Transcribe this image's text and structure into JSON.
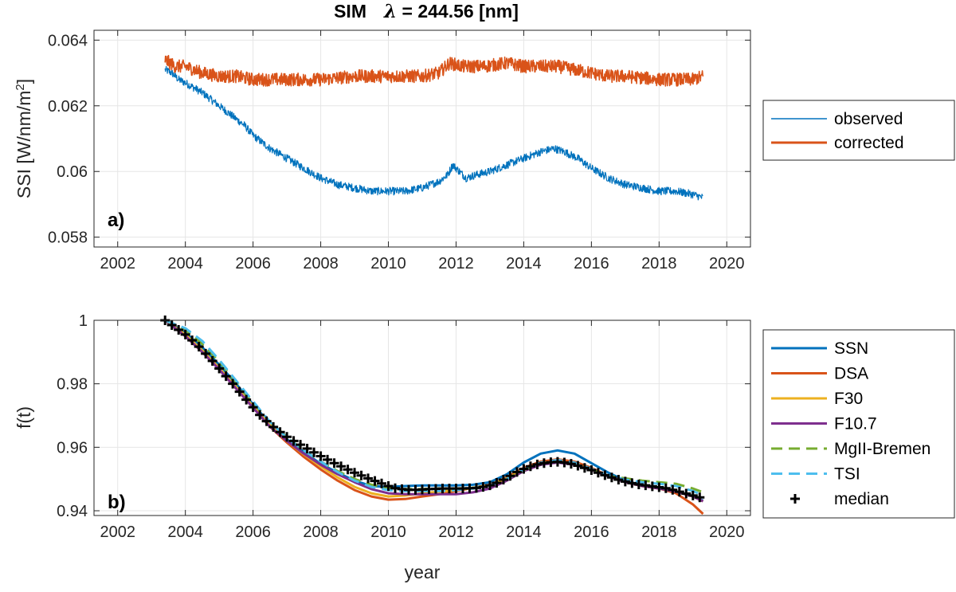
{
  "chart_data": [
    {
      "type": "line",
      "title": "SIM   λ = 244.56 [nm]",
      "title_prefix": "SIM",
      "title_symbol": "λ",
      "title_rest": " = 244.56 [nm]",
      "panel_label": "a)",
      "xlabel": "",
      "ylabel": "SSI [W/nm/m²]",
      "ylabel_main": "SSI [W/nm/m",
      "ylabel_sup": "2",
      "ylabel_end": "]",
      "xlim": [
        2001.3,
        2020.7
      ],
      "ylim": [
        0.0577,
        0.0643
      ],
      "xticks": [
        2002,
        2004,
        2006,
        2008,
        2010,
        2012,
        2014,
        2016,
        2018,
        2020
      ],
      "xtick_labels": [
        "2002",
        "2004",
        "2006",
        "2008",
        "2010",
        "2012",
        "2014",
        "2016",
        "2018",
        "2020"
      ],
      "yticks": [
        0.058,
        0.06,
        0.062,
        0.064
      ],
      "ytick_labels": [
        "0.058",
        "0.06",
        "0.062",
        "0.064"
      ],
      "grid": true,
      "legend_position": "outside-right",
      "series": [
        {
          "name": "observed",
          "color": "#0072BD",
          "x": [
            2003.4,
            2003.6,
            2003.8,
            2004.0,
            2004.25,
            2004.5,
            2004.75,
            2005.0,
            2005.25,
            2005.5,
            2005.75,
            2006.0,
            2006.5,
            2007.0,
            2007.5,
            2008.0,
            2008.5,
            2009.0,
            2009.5,
            2010.0,
            2010.5,
            2011.0,
            2011.5,
            2011.75,
            2011.9,
            2012.1,
            2012.3,
            2012.6,
            2013.0,
            2013.5,
            2014.0,
            2014.5,
            2014.9,
            2015.2,
            2015.6,
            2016.0,
            2016.5,
            2017.0,
            2017.5,
            2018.0,
            2018.5,
            2019.0,
            2019.3
          ],
          "values": [
            0.0631,
            0.063,
            0.0628,
            0.0627,
            0.06255,
            0.0624,
            0.0622,
            0.062,
            0.0618,
            0.0616,
            0.0614,
            0.0611,
            0.0607,
            0.0604,
            0.0601,
            0.0598,
            0.0596,
            0.0595,
            0.0594,
            0.0594,
            0.0594,
            0.0595,
            0.0597,
            0.0599,
            0.0602,
            0.06,
            0.0598,
            0.0599,
            0.06,
            0.0602,
            0.0604,
            0.0606,
            0.0607,
            0.0606,
            0.0604,
            0.0601,
            0.0598,
            0.0596,
            0.0595,
            0.0594,
            0.0594,
            0.0593,
            0.0592
          ],
          "noise_amplitude": 0.00012
        },
        {
          "name": "corrected",
          "color": "#D95319",
          "x": [
            2003.4,
            2003.7,
            2004.0,
            2004.5,
            2005.0,
            2005.5,
            2006.0,
            2007.0,
            2008.0,
            2009.0,
            2010.0,
            2011.0,
            2011.5,
            2011.8,
            2012.2,
            2012.8,
            2013.5,
            2014.0,
            2014.5,
            2015.0,
            2015.5,
            2016.0,
            2016.5,
            2017.0,
            2018.0,
            2019.0,
            2019.3
          ],
          "values": [
            0.0634,
            0.0632,
            0.0632,
            0.063,
            0.0629,
            0.0629,
            0.0628,
            0.0628,
            0.0628,
            0.0629,
            0.0629,
            0.0629,
            0.063,
            0.0633,
            0.0632,
            0.0632,
            0.0633,
            0.0632,
            0.0632,
            0.0632,
            0.0631,
            0.063,
            0.0629,
            0.0629,
            0.0628,
            0.0628,
            0.0629
          ],
          "noise_amplitude": 0.0002
        }
      ]
    },
    {
      "type": "line",
      "panel_label": "b)",
      "xlabel": "year",
      "ylabel": "f(t)",
      "xlim": [
        2001.3,
        2020.7
      ],
      "ylim": [
        0.9385,
        1.0
      ],
      "xticks": [
        2002,
        2004,
        2006,
        2008,
        2010,
        2012,
        2014,
        2016,
        2018,
        2020
      ],
      "xtick_labels": [
        "2002",
        "2004",
        "2006",
        "2008",
        "2010",
        "2012",
        "2014",
        "2016",
        "2018",
        "2020"
      ],
      "yticks": [
        0.94,
        0.96,
        0.98,
        1.0
      ],
      "ytick_labels": [
        "0.94",
        "0.96",
        "0.98",
        "1"
      ],
      "grid": true,
      "legend_position": "outside-right",
      "series": [
        {
          "name": "SSN",
          "color": "#0072BD",
          "dash": false,
          "x": [
            2003.4,
            2004.0,
            2004.5,
            2005.0,
            2005.5,
            2006.0,
            2006.5,
            2007.0,
            2007.5,
            2008.0,
            2008.5,
            2009.0,
            2009.5,
            2010.0,
            2010.5,
            2011.0,
            2011.5,
            2012.0,
            2012.5,
            2013.0,
            2013.5,
            2014.0,
            2014.5,
            2015.0,
            2015.5,
            2016.0,
            2016.5,
            2017.0,
            2017.5,
            2018.0,
            2018.5,
            2019.0,
            2019.3
          ],
          "values": [
            1.0,
            0.996,
            0.9915,
            0.986,
            0.98,
            0.9735,
            0.9675,
            0.9625,
            0.9585,
            0.9548,
            0.952,
            0.9495,
            0.9478,
            0.9475,
            0.9478,
            0.948,
            0.948,
            0.948,
            0.9482,
            0.949,
            0.9515,
            0.9552,
            0.958,
            0.959,
            0.958,
            0.955,
            0.952,
            0.9495,
            0.948,
            0.9472,
            0.946,
            0.9445,
            0.9432
          ]
        },
        {
          "name": "DSA",
          "color": "#D95319",
          "dash": false,
          "x": [
            2003.4,
            2004.0,
            2004.5,
            2005.0,
            2005.5,
            2006.0,
            2006.5,
            2007.0,
            2007.5,
            2008.0,
            2008.5,
            2009.0,
            2009.5,
            2010.0,
            2010.5,
            2011.0,
            2011.5,
            2012.0,
            2012.5,
            2013.0,
            2013.5,
            2014.0,
            2014.5,
            2015.0,
            2015.5,
            2016.0,
            2016.5,
            2017.0,
            2017.5,
            2018.0,
            2018.5,
            2019.0,
            2019.3
          ],
          "values": [
            1.0,
            0.995,
            0.99,
            0.9845,
            0.9785,
            0.9725,
            0.9665,
            0.9615,
            0.957,
            0.953,
            0.9495,
            0.9465,
            0.9445,
            0.9435,
            0.9437,
            0.9445,
            0.9452,
            0.9462,
            0.9472,
            0.9482,
            0.9505,
            0.9535,
            0.9555,
            0.9562,
            0.9555,
            0.9535,
            0.951,
            0.949,
            0.9478,
            0.947,
            0.9455,
            0.942,
            0.939
          ]
        },
        {
          "name": "F30",
          "color": "#EDB120",
          "dash": false,
          "x": [
            2003.4,
            2004.0,
            2004.5,
            2005.0,
            2005.5,
            2006.0,
            2006.5,
            2007.0,
            2007.5,
            2008.0,
            2008.5,
            2009.0,
            2009.5,
            2010.0,
            2010.5,
            2011.0,
            2011.5,
            2012.0,
            2012.5,
            2013.0,
            2013.5,
            2014.0,
            2014.5,
            2015.0,
            2015.5,
            2016.0,
            2016.5,
            2017.0,
            2017.5,
            2018.0,
            2018.5,
            2019.0,
            2019.3
          ],
          "values": [
            1.0,
            0.9955,
            0.9905,
            0.985,
            0.979,
            0.973,
            0.967,
            0.962,
            0.9578,
            0.954,
            0.9505,
            0.9475,
            0.9455,
            0.9445,
            0.9448,
            0.9455,
            0.946,
            0.9465,
            0.9472,
            0.948,
            0.9502,
            0.953,
            0.955,
            0.9555,
            0.9548,
            0.953,
            0.9508,
            0.949,
            0.9478,
            0.947,
            0.946,
            0.9445,
            0.943
          ]
        },
        {
          "name": "F10.7",
          "color": "#7E2F8E",
          "dash": false,
          "x": [
            2003.4,
            2004.0,
            2004.5,
            2005.0,
            2005.5,
            2006.0,
            2006.5,
            2007.0,
            2007.5,
            2008.0,
            2008.5,
            2009.0,
            2009.5,
            2010.0,
            2010.5,
            2011.0,
            2011.5,
            2012.0,
            2012.5,
            2013.0,
            2013.5,
            2014.0,
            2014.5,
            2015.0,
            2015.5,
            2016.0,
            2016.5,
            2017.0,
            2017.5,
            2018.0,
            2018.5,
            2019.0,
            2019.3
          ],
          "values": [
            1.0,
            0.995,
            0.99,
            0.9845,
            0.9785,
            0.9725,
            0.9665,
            0.962,
            0.958,
            0.9545,
            0.9515,
            0.949,
            0.9468,
            0.9455,
            0.9452,
            0.9452,
            0.9452,
            0.9452,
            0.9458,
            0.947,
            0.9495,
            0.9525,
            0.9545,
            0.9552,
            0.9545,
            0.9528,
            0.9508,
            0.949,
            0.9478,
            0.947,
            0.946,
            0.9445,
            0.943
          ]
        },
        {
          "name": "MgII-Bremen",
          "color": "#77AC30",
          "dash": true,
          "x": [
            2003.4,
            2004.0,
            2004.5,
            2005.0,
            2005.5,
            2006.0,
            2006.5,
            2007.0,
            2007.5,
            2008.0,
            2008.5,
            2009.0,
            2009.5,
            2010.0,
            2010.5,
            2011.0,
            2011.5,
            2012.0,
            2012.5,
            2013.0,
            2013.5,
            2014.0,
            2014.5,
            2015.0,
            2015.5,
            2016.0,
            2016.5,
            2017.0,
            2017.5,
            2018.0,
            2018.5,
            2019.0,
            2019.3
          ],
          "values": [
            1.0,
            0.997,
            0.9925,
            0.987,
            0.9805,
            0.974,
            0.968,
            0.9632,
            0.959,
            0.9555,
            0.9525,
            0.95,
            0.9482,
            0.9472,
            0.9468,
            0.9468,
            0.947,
            0.947,
            0.9472,
            0.948,
            0.95,
            0.9528,
            0.955,
            0.9555,
            0.9548,
            0.953,
            0.951,
            0.9502,
            0.9495,
            0.949,
            0.9485,
            0.947,
            0.9458
          ]
        },
        {
          "name": "TSI",
          "color": "#4DBEEE",
          "dash": true,
          "x": [
            2003.4,
            2004.0,
            2004.5,
            2005.0,
            2005.5,
            2006.0,
            2006.5,
            2007.0,
            2007.5,
            2008.0,
            2008.5,
            2009.0,
            2009.5,
            2010.0,
            2010.5,
            2011.0,
            2011.5,
            2012.0,
            2012.5,
            2013.0,
            2013.5,
            2014.0,
            2014.5,
            2015.0,
            2015.5,
            2016.0,
            2016.5,
            2017.0,
            2017.5,
            2018.0,
            2018.5,
            2019.0,
            2019.3
          ],
          "values": [
            1.0,
            0.9975,
            0.9935,
            0.9875,
            0.981,
            0.9745,
            0.968,
            0.963,
            0.959,
            0.9555,
            0.9522,
            0.9495,
            0.9475,
            0.9465,
            0.9462,
            0.9462,
            0.9462,
            0.9465,
            0.947,
            0.948,
            0.95,
            0.953,
            0.9552,
            0.956,
            0.9552,
            0.9532,
            0.951,
            0.9498,
            0.949,
            0.9485,
            0.9478,
            0.9462,
            0.9448
          ]
        },
        {
          "name": "median",
          "color": "#000000",
          "marker": "+",
          "x": [
            2003.4,
            2003.6,
            2003.8,
            2004.0,
            2004.2,
            2004.4,
            2004.6,
            2004.8,
            2005.0,
            2005.2,
            2005.4,
            2005.6,
            2005.8,
            2006.0,
            2006.2,
            2006.4,
            2006.6,
            2006.8,
            2007.0,
            2007.2,
            2007.4,
            2007.6,
            2007.8,
            2008.0,
            2008.2,
            2008.4,
            2008.6,
            2008.8,
            2009.0,
            2009.2,
            2009.4,
            2009.6,
            2009.8,
            2010.0,
            2010.2,
            2010.4,
            2010.6,
            2010.8,
            2011.0,
            2011.2,
            2011.4,
            2011.6,
            2011.8,
            2012.0,
            2012.2,
            2012.4,
            2012.6,
            2012.8,
            2013.0,
            2013.2,
            2013.4,
            2013.6,
            2013.8,
            2014.0,
            2014.2,
            2014.4,
            2014.6,
            2014.8,
            2015.0,
            2015.2,
            2015.4,
            2015.6,
            2015.8,
            2016.0,
            2016.2,
            2016.4,
            2016.6,
            2016.8,
            2017.0,
            2017.2,
            2017.4,
            2017.6,
            2017.8,
            2018.0,
            2018.2,
            2018.4,
            2018.6,
            2018.8,
            2019.0,
            2019.2
          ],
          "values": [
            1.0,
            0.9985,
            0.997,
            0.9955,
            0.9937,
            0.9917,
            0.9895,
            0.9872,
            0.9848,
            0.9824,
            0.98,
            0.9775,
            0.975,
            0.9726,
            0.9702,
            0.9682,
            0.9664,
            0.9648,
            0.9633,
            0.962,
            0.9608,
            0.9596,
            0.9584,
            0.9572,
            0.9561,
            0.955,
            0.954,
            0.953,
            0.952,
            0.9511,
            0.9502,
            0.9494,
            0.9486,
            0.9478,
            0.9471,
            0.9468,
            0.9466,
            0.9466,
            0.9467,
            0.9468,
            0.9469,
            0.947,
            0.947,
            0.947,
            0.947,
            0.9471,
            0.9472,
            0.9475,
            0.948,
            0.9488,
            0.9498,
            0.951,
            0.9522,
            0.9532,
            0.954,
            0.9546,
            0.955,
            0.9553,
            0.9554,
            0.9552,
            0.9548,
            0.9542,
            0.9535,
            0.9528,
            0.952,
            0.9512,
            0.9505,
            0.9498,
            0.9492,
            0.9487,
            0.9483,
            0.948,
            0.9477,
            0.9474,
            0.9471,
            0.9466,
            0.946,
            0.9454,
            0.9448,
            0.9442
          ]
        }
      ]
    }
  ]
}
